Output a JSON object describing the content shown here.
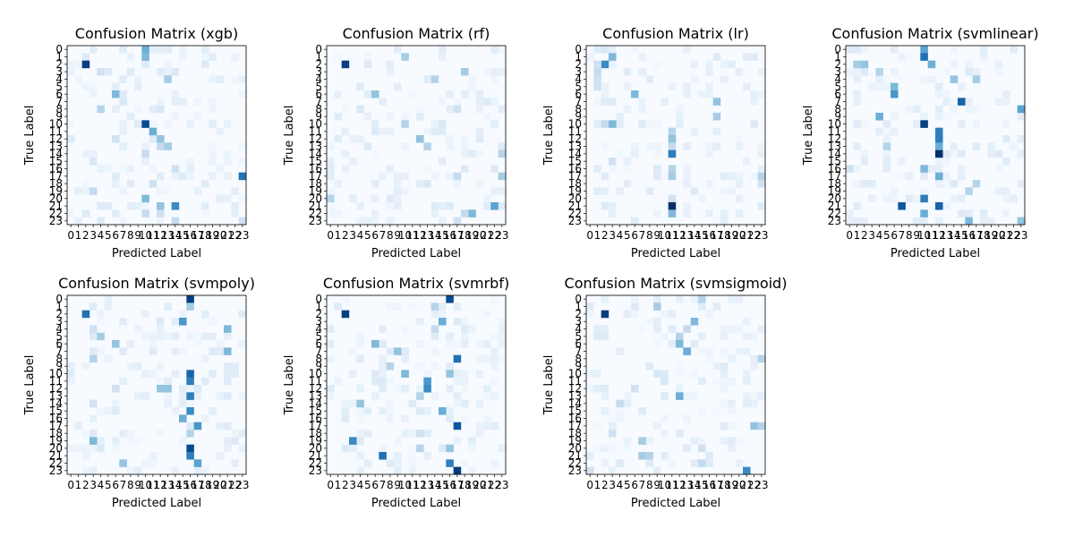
{
  "chart_data": [
    {
      "type": "heatmap",
      "title": "Confusion Matrix (xgb)",
      "xlabel": "Predicted Label",
      "ylabel": "True Label",
      "xticks": [
        "0",
        "1",
        "2",
        "3",
        "4",
        "5",
        "6",
        "7",
        "8",
        "9",
        "10",
        "11",
        "12",
        "13",
        "14",
        "15",
        "16",
        "17",
        "18",
        "19",
        "20",
        "21",
        "22",
        "23"
      ],
      "yticks": [
        "0",
        "1",
        "2",
        "3",
        "4",
        "5",
        "6",
        "7",
        "8",
        "9",
        "10",
        "11",
        "12",
        "13",
        "14",
        "15",
        "16",
        "17",
        "18",
        "19",
        "20",
        "21",
        "22",
        "23"
      ],
      "colormap": "Blues",
      "vrange": [
        0,
        1
      ],
      "cells": [
        [
          0,
          10,
          0.5
        ],
        [
          1,
          10,
          0.45
        ],
        [
          2,
          2,
          0.95
        ],
        [
          3,
          4,
          0.2
        ],
        [
          4,
          13,
          0.35
        ],
        [
          5,
          6,
          0.1
        ],
        [
          6,
          6,
          0.45
        ],
        [
          7,
          7,
          0.15
        ],
        [
          8,
          4,
          0.3
        ],
        [
          8,
          12,
          0.15
        ],
        [
          9,
          8,
          0.1
        ],
        [
          10,
          10,
          0.9
        ],
        [
          11,
          11,
          0.5
        ],
        [
          12,
          12,
          0.4
        ],
        [
          12,
          6,
          0.2
        ],
        [
          13,
          13,
          0.35
        ],
        [
          13,
          12,
          0.25
        ],
        [
          14,
          10,
          0.25
        ],
        [
          15,
          3,
          0.15
        ],
        [
          16,
          14,
          0.2
        ],
        [
          17,
          23,
          0.75
        ],
        [
          18,
          11,
          0.2
        ],
        [
          19,
          3,
          0.25
        ],
        [
          20,
          10,
          0.45
        ],
        [
          21,
          12,
          0.4
        ],
        [
          21,
          14,
          0.65
        ],
        [
          22,
          10,
          0.25
        ],
        [
          22,
          12,
          0.2
        ],
        [
          23,
          14,
          0.25
        ],
        [
          23,
          23,
          0.2
        ],
        [
          3,
          14,
          0.15
        ],
        [
          5,
          9,
          0.1
        ]
      ]
    },
    {
      "type": "heatmap",
      "title": "Confusion Matrix (rf)",
      "xlabel": "Predicted Label",
      "ylabel": "True Label",
      "xticks": [
        "0",
        "1",
        "2",
        "3",
        "4",
        "5",
        "6",
        "7",
        "8",
        "9",
        "10",
        "11",
        "12",
        "13",
        "14",
        "15",
        "16",
        "17",
        "18",
        "19",
        "20",
        "21",
        "22",
        "23"
      ],
      "yticks": [
        "0",
        "1",
        "2",
        "3",
        "4",
        "5",
        "6",
        "7",
        "8",
        "9",
        "10",
        "11",
        "12",
        "13",
        "14",
        "15",
        "16",
        "17",
        "18",
        "19",
        "20",
        "21",
        "22",
        "23"
      ],
      "colormap": "Blues",
      "vrange": [
        0,
        1
      ],
      "cells": [
        [
          1,
          10,
          0.35
        ],
        [
          2,
          2,
          0.95
        ],
        [
          3,
          18,
          0.35
        ],
        [
          4,
          14,
          0.3
        ],
        [
          6,
          6,
          0.4
        ],
        [
          8,
          4,
          0.15
        ],
        [
          8,
          17,
          0.2
        ],
        [
          10,
          10,
          0.3
        ],
        [
          10,
          15,
          0.15
        ],
        [
          12,
          12,
          0.4
        ],
        [
          13,
          13,
          0.3
        ],
        [
          14,
          23,
          0.3
        ],
        [
          17,
          23,
          0.35
        ],
        [
          17,
          17,
          0.25
        ],
        [
          20,
          0,
          0.3
        ],
        [
          21,
          22,
          0.55
        ],
        [
          22,
          19,
          0.45
        ],
        [
          22,
          18,
          0.25
        ],
        [
          23,
          17,
          0.2
        ],
        [
          5,
          9,
          0.1
        ],
        [
          15,
          0,
          0.1
        ],
        [
          18,
          13,
          0.15
        ]
      ]
    },
    {
      "type": "heatmap",
      "title": "Confusion Matrix (lr)",
      "xlabel": "Predicted Label",
      "ylabel": "True Label",
      "xticks": [
        "0",
        "1",
        "2",
        "3",
        "4",
        "5",
        "6",
        "7",
        "8",
        "9",
        "10",
        "11",
        "12",
        "13",
        "14",
        "15",
        "16",
        "17",
        "18",
        "19",
        "20",
        "21",
        "22",
        "23"
      ],
      "yticks": [
        "0",
        "1",
        "2",
        "3",
        "4",
        "5",
        "6",
        "7",
        "8",
        "9",
        "10",
        "11",
        "12",
        "13",
        "14",
        "15",
        "16",
        "17",
        "18",
        "19",
        "20",
        "21",
        "22",
        "23"
      ],
      "colormap": "Blues",
      "vrange": [
        0,
        1
      ],
      "cells": [
        [
          0,
          2,
          0.15
        ],
        [
          1,
          3,
          0.45
        ],
        [
          2,
          2,
          0.65
        ],
        [
          2,
          1,
          0.2
        ],
        [
          3,
          1,
          0.25
        ],
        [
          4,
          1,
          0.2
        ],
        [
          5,
          1,
          0.2
        ],
        [
          6,
          6,
          0.45
        ],
        [
          7,
          17,
          0.4
        ],
        [
          9,
          17,
          0.35
        ],
        [
          10,
          3,
          0.45
        ],
        [
          10,
          2,
          0.25
        ],
        [
          11,
          11,
          0.3
        ],
        [
          12,
          11,
          0.4
        ],
        [
          13,
          11,
          0.25
        ],
        [
          14,
          11,
          0.7
        ],
        [
          16,
          11,
          0.3
        ],
        [
          17,
          11,
          0.35
        ],
        [
          20,
          11,
          0.2
        ],
        [
          21,
          11,
          1.0
        ],
        [
          22,
          11,
          0.45
        ],
        [
          17,
          23,
          0.3
        ],
        [
          18,
          23,
          0.2
        ],
        [
          15,
          3,
          0.2
        ]
      ]
    },
    {
      "type": "heatmap",
      "title": "Confusion Matrix (svmlinear)",
      "xlabel": "Predicted Label",
      "ylabel": "True Label",
      "xticks": [
        "0",
        "1",
        "2",
        "3",
        "4",
        "5",
        "6",
        "7",
        "8",
        "9",
        "10",
        "11",
        "12",
        "13",
        "14",
        "15",
        "16",
        "17",
        "18",
        "19",
        "20",
        "21",
        "22",
        "23"
      ],
      "yticks": [
        "0",
        "1",
        "2",
        "3",
        "4",
        "5",
        "6",
        "7",
        "8",
        "9",
        "10",
        "11",
        "12",
        "13",
        "14",
        "15",
        "16",
        "17",
        "18",
        "19",
        "20",
        "21",
        "22",
        "23"
      ],
      "colormap": "Blues",
      "vrange": [
        0,
        1
      ],
      "cells": [
        [
          0,
          10,
          0.55
        ],
        [
          1,
          10,
          0.75
        ],
        [
          2,
          1,
          0.35
        ],
        [
          2,
          2,
          0.4
        ],
        [
          2,
          11,
          0.5
        ],
        [
          4,
          14,
          0.4
        ],
        [
          4,
          17,
          0.35
        ],
        [
          5,
          6,
          0.45
        ],
        [
          6,
          6,
          0.6
        ],
        [
          7,
          15,
          0.8
        ],
        [
          8,
          23,
          0.55
        ],
        [
          9,
          4,
          0.5
        ],
        [
          10,
          10,
          0.95
        ],
        [
          11,
          12,
          0.7
        ],
        [
          12,
          12,
          0.7
        ],
        [
          13,
          12,
          0.5
        ],
        [
          14,
          12,
          1.0
        ],
        [
          16,
          10,
          0.45
        ],
        [
          17,
          12,
          0.5
        ],
        [
          19,
          16,
          0.3
        ],
        [
          20,
          10,
          0.7
        ],
        [
          21,
          7,
          0.85
        ],
        [
          21,
          12,
          0.8
        ],
        [
          22,
          10,
          0.5
        ],
        [
          23,
          16,
          0.45
        ],
        [
          23,
          23,
          0.4
        ],
        [
          18,
          17,
          0.3
        ],
        [
          16,
          0,
          0.2
        ],
        [
          3,
          4,
          0.3
        ],
        [
          13,
          5,
          0.3
        ]
      ]
    },
    {
      "type": "heatmap",
      "title": "Confusion Matrix (svmpoly)",
      "xlabel": "Predicted Label",
      "ylabel": "True Label",
      "xticks": [
        "0",
        "1",
        "2",
        "3",
        "4",
        "5",
        "6",
        "7",
        "8",
        "9",
        "10",
        "11",
        "12",
        "13",
        "14",
        "15",
        "16",
        "17",
        "18",
        "19",
        "20",
        "21",
        "22",
        "23"
      ],
      "yticks": [
        "0",
        "1",
        "2",
        "3",
        "4",
        "5",
        "6",
        "7",
        "8",
        "9",
        "10",
        "11",
        "12",
        "13",
        "14",
        "15",
        "16",
        "17",
        "18",
        "19",
        "20",
        "21",
        "22",
        "23"
      ],
      "colormap": "Blues",
      "vrange": [
        0,
        1
      ],
      "cells": [
        [
          0,
          16,
          0.95
        ],
        [
          1,
          16,
          0.35
        ],
        [
          2,
          2,
          0.75
        ],
        [
          3,
          15,
          0.6
        ],
        [
          4,
          21,
          0.45
        ],
        [
          5,
          4,
          0.35
        ],
        [
          6,
          6,
          0.4
        ],
        [
          7,
          21,
          0.45
        ],
        [
          8,
          3,
          0.3
        ],
        [
          10,
          16,
          0.8
        ],
        [
          11,
          16,
          0.7
        ],
        [
          12,
          12,
          0.4
        ],
        [
          12,
          13,
          0.4
        ],
        [
          13,
          16,
          0.7
        ],
        [
          15,
          16,
          0.65
        ],
        [
          16,
          15,
          0.5
        ],
        [
          17,
          17,
          0.6
        ],
        [
          18,
          16,
          0.3
        ],
        [
          19,
          3,
          0.45
        ],
        [
          20,
          16,
          0.9
        ],
        [
          21,
          16,
          0.7
        ],
        [
          22,
          17,
          0.55
        ],
        [
          22,
          7,
          0.4
        ],
        [
          4,
          3,
          0.2
        ],
        [
          14,
          3,
          0.2
        ],
        [
          12,
          6,
          0.2
        ]
      ]
    },
    {
      "type": "heatmap",
      "title": "Confusion Matrix (svmrbf)",
      "xlabel": "Predicted Label",
      "ylabel": "True Label",
      "xticks": [
        "0",
        "1",
        "2",
        "3",
        "4",
        "5",
        "6",
        "7",
        "8",
        "9",
        "10",
        "11",
        "12",
        "13",
        "14",
        "15",
        "16",
        "17",
        "18",
        "19",
        "20",
        "21",
        "22",
        "23"
      ],
      "yticks": [
        "0",
        "1",
        "2",
        "3",
        "4",
        "5",
        "6",
        "7",
        "8",
        "9",
        "10",
        "11",
        "12",
        "13",
        "14",
        "15",
        "16",
        "17",
        "18",
        "19",
        "20",
        "21",
        "22",
        "23"
      ],
      "colormap": "Blues",
      "vrange": [
        0,
        1
      ],
      "cells": [
        [
          0,
          16,
          0.9
        ],
        [
          1,
          14,
          0.3
        ],
        [
          2,
          2,
          0.95
        ],
        [
          3,
          15,
          0.5
        ],
        [
          4,
          14,
          0.25
        ],
        [
          6,
          6,
          0.45
        ],
        [
          7,
          9,
          0.4
        ],
        [
          8,
          17,
          0.75
        ],
        [
          9,
          8,
          0.3
        ],
        [
          10,
          10,
          0.45
        ],
        [
          10,
          16,
          0.4
        ],
        [
          11,
          13,
          0.6
        ],
        [
          12,
          13,
          0.65
        ],
        [
          14,
          4,
          0.4
        ],
        [
          15,
          15,
          0.5
        ],
        [
          17,
          17,
          0.85
        ],
        [
          19,
          3,
          0.65
        ],
        [
          20,
          16,
          0.4
        ],
        [
          21,
          7,
          0.75
        ],
        [
          22,
          16,
          0.7
        ],
        [
          23,
          17,
          0.95
        ],
        [
          13,
          12,
          0.3
        ],
        [
          20,
          12,
          0.3
        ],
        [
          18,
          12,
          0.2
        ]
      ]
    },
    {
      "type": "heatmap",
      "title": "Confusion Matrix (svmsigmoid)",
      "xlabel": "Predicted Label",
      "ylabel": "True Label",
      "xticks": [
        "0",
        "1",
        "2",
        "3",
        "4",
        "5",
        "6",
        "7",
        "8",
        "9",
        "10",
        "11",
        "12",
        "13",
        "14",
        "15",
        "16",
        "17",
        "18",
        "19",
        "20",
        "21",
        "22",
        "23"
      ],
      "yticks": [
        "0",
        "1",
        "2",
        "3",
        "4",
        "5",
        "6",
        "7",
        "8",
        "9",
        "10",
        "11",
        "12",
        "13",
        "14",
        "15",
        "16",
        "17",
        "18",
        "19",
        "20",
        "21",
        "22",
        "23"
      ],
      "colormap": "Blues",
      "vrange": [
        0,
        1
      ],
      "cells": [
        [
          0,
          15,
          0.3
        ],
        [
          1,
          9,
          0.35
        ],
        [
          2,
          2,
          0.95
        ],
        [
          3,
          14,
          0.45
        ],
        [
          4,
          13,
          0.25
        ],
        [
          5,
          12,
          0.3
        ],
        [
          6,
          12,
          0.45
        ],
        [
          7,
          13,
          0.5
        ],
        [
          8,
          23,
          0.3
        ],
        [
          10,
          9,
          0.15
        ],
        [
          11,
          10,
          0.15
        ],
        [
          12,
          6,
          0.2
        ],
        [
          13,
          12,
          0.5
        ],
        [
          14,
          4,
          0.25
        ],
        [
          17,
          22,
          0.4
        ],
        [
          17,
          23,
          0.3
        ],
        [
          19,
          7,
          0.35
        ],
        [
          20,
          15,
          0.2
        ],
        [
          21,
          7,
          0.35
        ],
        [
          21,
          8,
          0.3
        ],
        [
          22,
          15,
          0.25
        ],
        [
          23,
          21,
          0.65
        ],
        [
          23,
          0,
          0.2
        ],
        [
          18,
          3,
          0.2
        ]
      ]
    }
  ]
}
